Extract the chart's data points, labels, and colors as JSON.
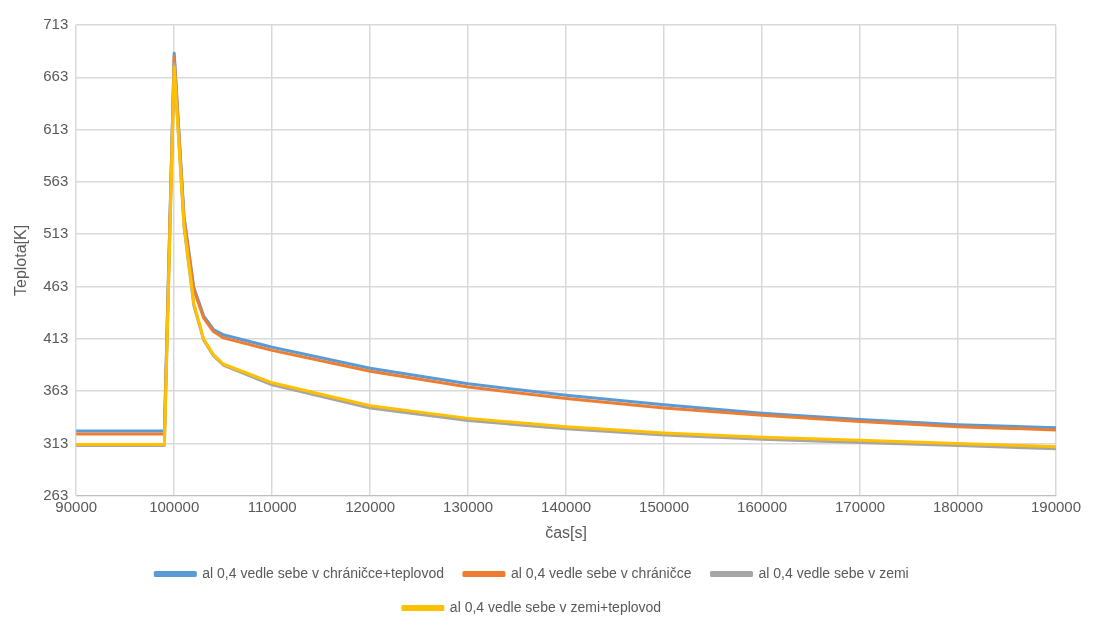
{
  "chart_data": {
    "type": "line",
    "xlabel": "čas[s]",
    "ylabel": "Teplota[K]",
    "x": [
      90000,
      99000,
      100000,
      101000,
      102000,
      103000,
      104000,
      105000,
      110000,
      120000,
      130000,
      140000,
      150000,
      160000,
      170000,
      180000,
      190000
    ],
    "series": [
      {
        "name": "al 0,4 vedle sebe v chráničce+teplovod",
        "color": "#5b9bd5",
        "values": [
          325,
          325,
          686,
          530,
          462,
          435,
          422,
          417,
          405,
          385,
          370,
          359,
          350,
          342,
          336,
          331,
          328
        ]
      },
      {
        "name": "al 0,4 vedle sebe v chráničce",
        "color": "#ed7d31",
        "values": [
          322,
          322,
          683,
          528,
          460,
          433,
          420,
          414,
          402,
          382,
          367,
          356,
          347,
          340,
          334,
          329,
          326
        ]
      },
      {
        "name": "al 0,4 vedle sebe v zemi",
        "color": "#a5a5a5",
        "values": [
          311,
          311,
          676,
          520,
          445,
          412,
          397,
          388,
          369,
          347,
          335,
          327,
          321,
          317,
          314,
          311,
          308
        ]
      },
      {
        "name": "al 0,4 vedle sebe v zemi+teplovod",
        "color": "#ffc000",
        "values": [
          312,
          312,
          673,
          522,
          447,
          413,
          398,
          389,
          371,
          349,
          337,
          329,
          323,
          319,
          316,
          313,
          310
        ]
      }
    ],
    "xlim": [
      90000,
      190000
    ],
    "xticks": [
      90000,
      100000,
      110000,
      120000,
      130000,
      140000,
      150000,
      160000,
      170000,
      180000,
      190000
    ],
    "ylim": [
      263,
      713
    ],
    "yticks": [
      263,
      313,
      363,
      413,
      463,
      513,
      563,
      613,
      663,
      713
    ],
    "grid": true,
    "legend": "bottom",
    "marker": "none",
    "line_style": "solid"
  }
}
